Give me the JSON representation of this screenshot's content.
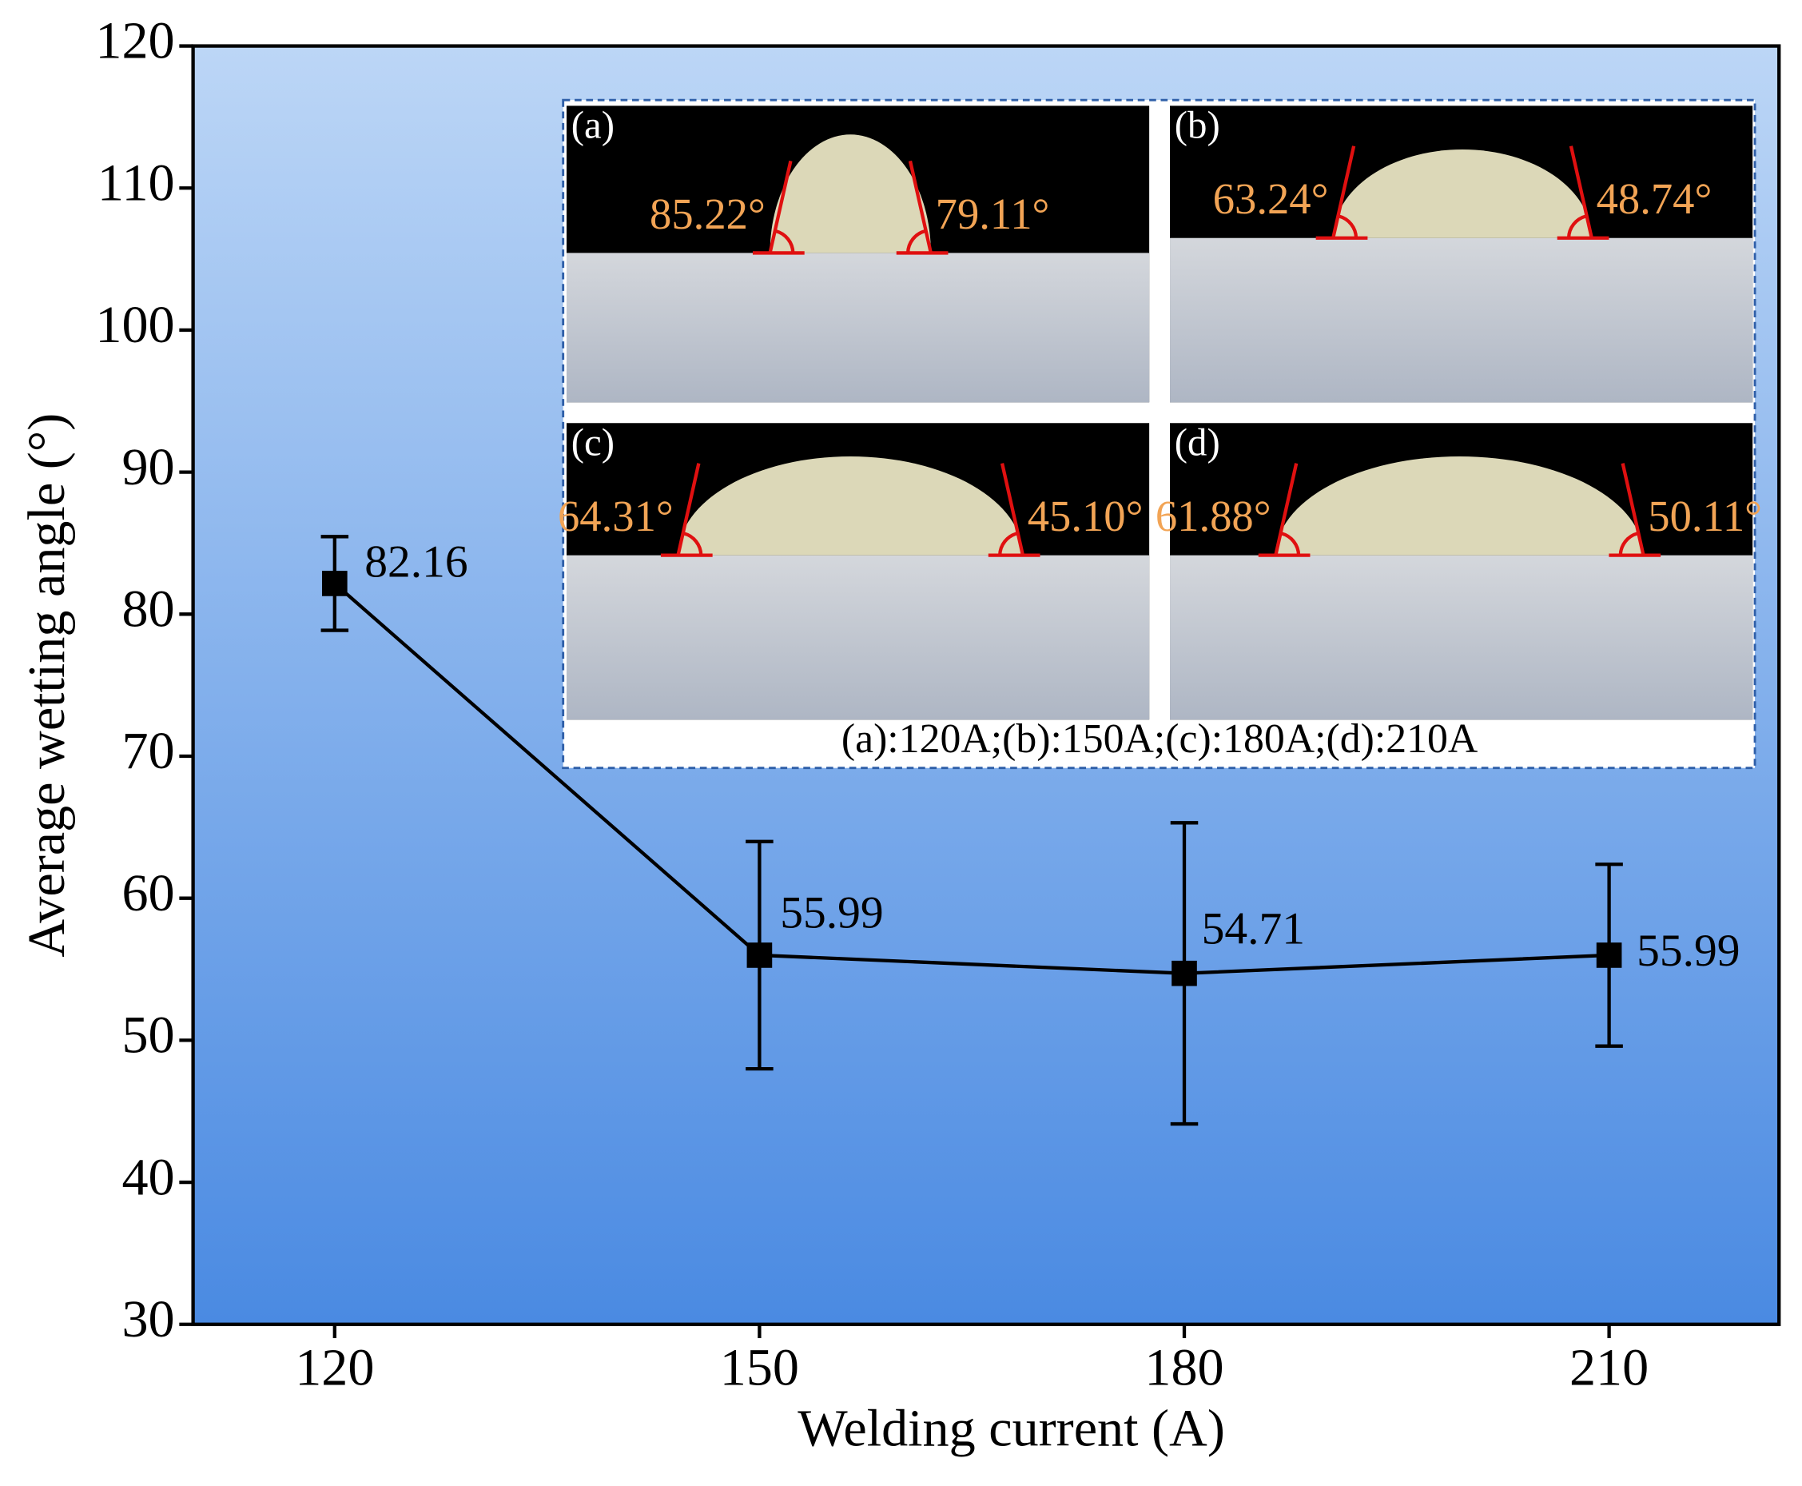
{
  "chart_data": {
    "type": "line",
    "xlabel": "Welding current (A)",
    "ylabel": "Average wetting angle (°)",
    "x": [
      120,
      150,
      180,
      210
    ],
    "series": [
      {
        "color": "#000000",
        "values": [
          82.16,
          55.99,
          54.71,
          55.99
        ],
        "errors": [
          3.3,
          8.0,
          10.6,
          6.4
        ]
      }
    ],
    "xlim": [
      110,
      222
    ],
    "xticks": [
      120,
      150,
      180,
      210
    ],
    "ylim": [
      30,
      120
    ],
    "yticks": [
      30,
      40,
      50,
      60,
      70,
      80,
      90,
      100,
      110,
      120
    ],
    "inset": {
      "panels": [
        {
          "label": "(a)",
          "angles": [
            "85.22°",
            "79.11°"
          ]
        },
        {
          "label": "(b)",
          "angles": [
            "63.24°",
            "48.74°"
          ]
        },
        {
          "label": "(c)",
          "angles": [
            "64.31°",
            "45.10°"
          ]
        },
        {
          "label": "(d)",
          "angles": [
            "61.88°",
            "50.11°"
          ]
        }
      ],
      "caption": "(a):120A;(b):150A;(c):180A;(d):210A"
    }
  }
}
